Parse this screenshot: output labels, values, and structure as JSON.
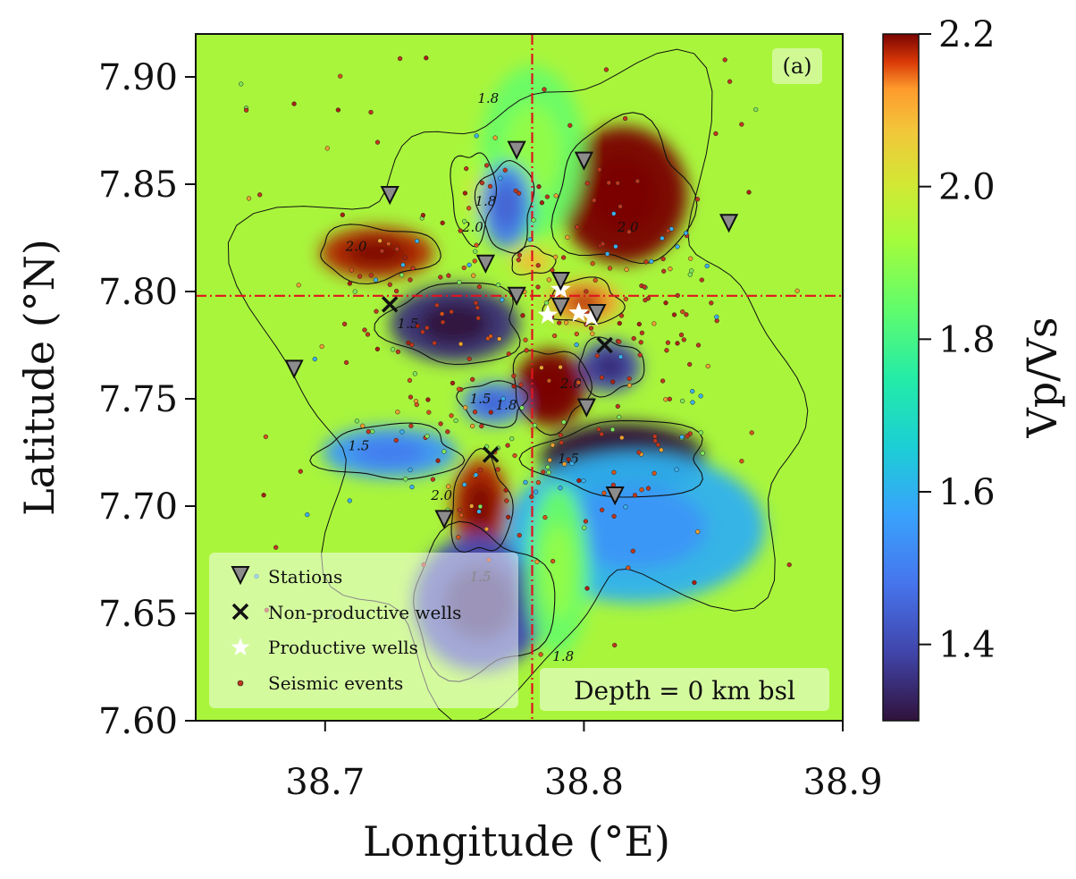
{
  "chart_data": {
    "type": "heatmap",
    "panel_label": "(a)",
    "depth_label": "Depth = 0 km bsl",
    "xlabel": "Longitude (°E)",
    "ylabel": "Latitude (°N)",
    "xlim": [
      38.65,
      38.9
    ],
    "ylim": [
      7.6,
      7.92
    ],
    "x_ticks": [
      38.7,
      38.8,
      38.9
    ],
    "x_tick_labels": [
      "38.7",
      "38.8",
      "38.9"
    ],
    "y_ticks": [
      7.6,
      7.65,
      7.7,
      7.75,
      7.8,
      7.85,
      7.9
    ],
    "y_tick_labels": [
      "7.60",
      "7.65",
      "7.70",
      "7.75",
      "7.80",
      "7.85",
      "7.90"
    ],
    "colorbar": {
      "label": "Vp/Vs",
      "range": [
        1.3,
        2.2
      ],
      "ticks": [
        1.4,
        1.6,
        1.8,
        2.0,
        2.2
      ],
      "tick_labels": [
        "1.4",
        "1.6",
        "1.8",
        "2.0",
        "2.2"
      ],
      "colormap": "turbo"
    },
    "crosshair": {
      "lon": 38.78,
      "lat": 7.798,
      "color": "#e0141e"
    },
    "anomalies": [
      {
        "lon": 38.815,
        "lat": 7.845,
        "rx": 0.025,
        "ry": 0.032,
        "vpvs": 2.25
      },
      {
        "lon": 38.78,
        "lat": 7.865,
        "rx": 0.02,
        "ry": 0.04,
        "vpvs": 1.85
      },
      {
        "lon": 38.72,
        "lat": 7.818,
        "rx": 0.022,
        "ry": 0.012,
        "vpvs": 2.18
      },
      {
        "lon": 38.757,
        "lat": 7.845,
        "rx": 0.008,
        "ry": 0.02,
        "vpvs": 1.93
      },
      {
        "lon": 38.77,
        "lat": 7.84,
        "rx": 0.01,
        "ry": 0.02,
        "vpvs": 1.5
      },
      {
        "lon": 38.75,
        "lat": 7.785,
        "rx": 0.025,
        "ry": 0.018,
        "vpvs": 1.35
      },
      {
        "lon": 38.8,
        "lat": 7.795,
        "rx": 0.014,
        "ry": 0.01,
        "vpvs": 2.12
      },
      {
        "lon": 38.78,
        "lat": 7.814,
        "rx": 0.008,
        "ry": 0.006,
        "vpvs": 2.05
      },
      {
        "lon": 38.81,
        "lat": 7.765,
        "rx": 0.012,
        "ry": 0.012,
        "vpvs": 1.4
      },
      {
        "lon": 38.787,
        "lat": 7.755,
        "rx": 0.014,
        "ry": 0.018,
        "vpvs": 2.22
      },
      {
        "lon": 38.765,
        "lat": 7.748,
        "rx": 0.012,
        "ry": 0.01,
        "vpvs": 1.5
      },
      {
        "lon": 38.815,
        "lat": 7.722,
        "rx": 0.032,
        "ry": 0.017,
        "vpvs": 1.3
      },
      {
        "lon": 38.725,
        "lat": 7.725,
        "rx": 0.026,
        "ry": 0.012,
        "vpvs": 1.55
      },
      {
        "lon": 38.76,
        "lat": 7.7,
        "rx": 0.011,
        "ry": 0.022,
        "vpvs": 2.18
      },
      {
        "lon": 38.76,
        "lat": 7.655,
        "rx": 0.026,
        "ry": 0.032,
        "vpvs": 1.4
      },
      {
        "lon": 38.82,
        "lat": 7.69,
        "rx": 0.05,
        "ry": 0.035,
        "vpvs": 1.6
      },
      {
        "lon": 38.79,
        "lat": 7.67,
        "rx": 0.012,
        "ry": 0.04,
        "vpvs": 1.85
      }
    ],
    "contour_labels": [
      {
        "text": "1.8",
        "lon": 38.763,
        "lat": 7.888
      },
      {
        "text": "1.8",
        "lon": 38.762,
        "lat": 7.84
      },
      {
        "text": "2.0",
        "lon": 38.712,
        "lat": 7.819
      },
      {
        "text": "2.0",
        "lon": 38.757,
        "lat": 7.828
      },
      {
        "text": "2.0",
        "lon": 38.817,
        "lat": 7.828
      },
      {
        "text": "1.5",
        "lon": 38.732,
        "lat": 7.783
      },
      {
        "text": "1.5",
        "lon": 38.76,
        "lat": 7.748
      },
      {
        "text": "2.0",
        "lon": 38.795,
        "lat": 7.755
      },
      {
        "text": "1.8",
        "lon": 38.77,
        "lat": 7.745
      },
      {
        "text": "1.5",
        "lon": 38.713,
        "lat": 7.726
      },
      {
        "text": "1.5",
        "lon": 38.794,
        "lat": 7.72
      },
      {
        "text": "2.0",
        "lon": 38.745,
        "lat": 7.703
      },
      {
        "text": "1.5",
        "lon": 38.76,
        "lat": 7.665
      },
      {
        "text": "1.8",
        "lon": 38.792,
        "lat": 7.628
      }
    ],
    "stations": [
      [
        38.725,
        7.845
      ],
      [
        38.774,
        7.866
      ],
      [
        38.8,
        7.861
      ],
      [
        38.856,
        7.832
      ],
      [
        38.762,
        7.813
      ],
      [
        38.774,
        7.798
      ],
      [
        38.791,
        7.793
      ],
      [
        38.791,
        7.805
      ],
      [
        38.805,
        7.79
      ],
      [
        38.688,
        7.764
      ],
      [
        38.801,
        7.746
      ],
      [
        38.746,
        7.694
      ],
      [
        38.812,
        7.705
      ]
    ],
    "nonproductive_wells": [
      [
        38.725,
        7.794
      ],
      [
        38.808,
        7.775
      ],
      [
        38.764,
        7.724
      ]
    ],
    "productive_wells": [
      [
        38.791,
        7.801
      ],
      [
        38.786,
        7.789
      ],
      [
        38.798,
        7.79
      ],
      [
        38.803,
        7.788
      ]
    ],
    "seismic_event_count": 360,
    "legend": {
      "position": "lower-left",
      "entries": [
        "Stations",
        "Non-productive wells",
        "Productive wells",
        "Seismic events"
      ]
    }
  },
  "colors": {
    "background_field": "#a9f53c",
    "crosshair": "#e0141e",
    "station_fill": "#8c8c8c",
    "event_fill": "#c0361c"
  }
}
